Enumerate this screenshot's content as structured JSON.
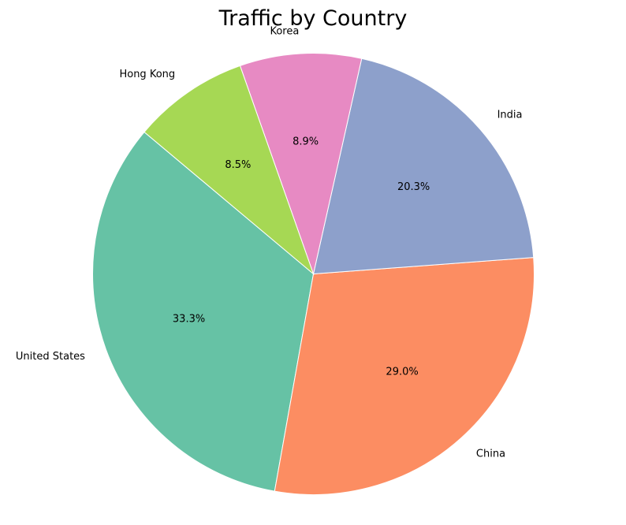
{
  "chart_data": {
    "type": "pie",
    "title": "Traffic by Country",
    "slices": [
      {
        "label": "United States",
        "value": 33.3,
        "pct_label": "33.3%",
        "color": "#66c2a5"
      },
      {
        "label": "China",
        "value": 29.0,
        "pct_label": "29.0%",
        "color": "#fc8d62"
      },
      {
        "label": "India",
        "value": 20.3,
        "pct_label": "20.3%",
        "color": "#8da0cb"
      },
      {
        "label": "Korea",
        "value": 8.9,
        "pct_label": "8.9%",
        "color": "#e78ac3"
      },
      {
        "label": "Hong Kong",
        "value": 8.5,
        "pct_label": "8.5%",
        "color": "#a6d854"
      }
    ],
    "start_angle_deg": 140,
    "direction": "counterclockwise",
    "edge_color": "#ffffff"
  }
}
